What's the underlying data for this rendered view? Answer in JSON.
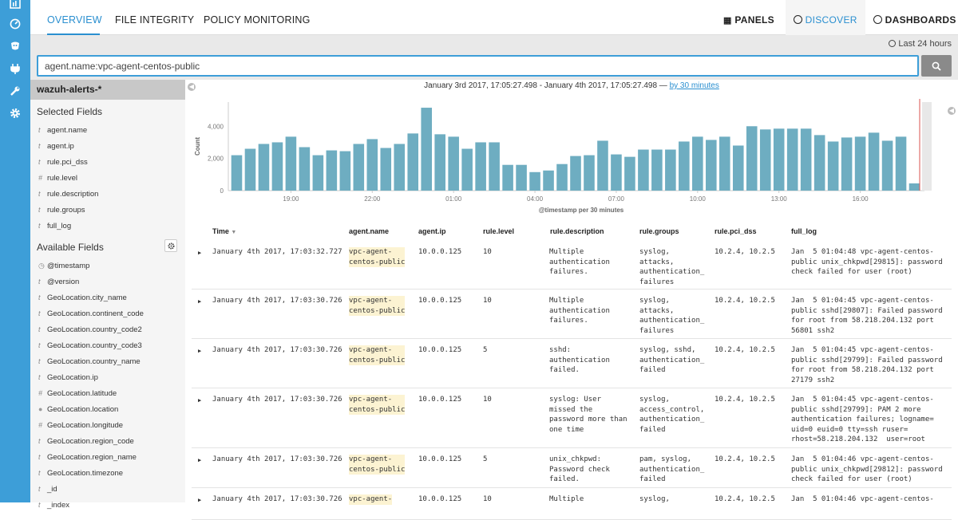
{
  "nav": {
    "tabs": [
      "OVERVIEW",
      "FILE INTEGRITY",
      "POLICY MONITORING"
    ],
    "right_tabs": [
      "PANELS",
      "DISCOVER",
      "DASHBOARDS"
    ]
  },
  "time_picker": "Last 24 hours",
  "search": {
    "query": "agent.name:vpc-agent-centos-public"
  },
  "sidebar": {
    "index_pattern": "wazuh-alerts-*",
    "selected_title": "Selected Fields",
    "selected_fields": [
      {
        "type": "t",
        "name": "agent.name"
      },
      {
        "type": "t",
        "name": "agent.ip"
      },
      {
        "type": "t",
        "name": "rule.pci_dss"
      },
      {
        "type": "#",
        "name": "rule.level"
      },
      {
        "type": "t",
        "name": "rule.description"
      },
      {
        "type": "t",
        "name": "rule.groups"
      },
      {
        "type": "t",
        "name": "full_log"
      }
    ],
    "available_title": "Available Fields",
    "available_fields": [
      {
        "type": "clock",
        "name": "@timestamp"
      },
      {
        "type": "t",
        "name": "@version"
      },
      {
        "type": "t",
        "name": "GeoLocation.city_name"
      },
      {
        "type": "t",
        "name": "GeoLocation.continent_code"
      },
      {
        "type": "t",
        "name": "GeoLocation.country_code2"
      },
      {
        "type": "t",
        "name": "GeoLocation.country_code3"
      },
      {
        "type": "t",
        "name": "GeoLocation.country_name"
      },
      {
        "type": "t",
        "name": "GeoLocation.ip"
      },
      {
        "type": "#",
        "name": "GeoLocation.latitude"
      },
      {
        "type": "globe",
        "name": "GeoLocation.location"
      },
      {
        "type": "#",
        "name": "GeoLocation.longitude"
      },
      {
        "type": "t",
        "name": "GeoLocation.region_code"
      },
      {
        "type": "t",
        "name": "GeoLocation.region_name"
      },
      {
        "type": "t",
        "name": "GeoLocation.timezone"
      },
      {
        "type": "t",
        "name": "_id"
      },
      {
        "type": "t",
        "name": "_index"
      }
    ]
  },
  "histogram": {
    "range_text": "January 3rd 2017, 17:05:27.498 - January 4th 2017, 17:05:27.498 —",
    "interval_link": "by 30 minutes",
    "xlabel": "@timestamp per 30 minutes"
  },
  "chart_data": {
    "type": "bar",
    "title": "",
    "xlabel": "@timestamp per 30 minutes",
    "ylabel": "Count",
    "ylim": [
      0,
      5500
    ],
    "yticks": [
      "0",
      "2,000",
      "4,000"
    ],
    "ytick_values": [
      0,
      2000,
      4000
    ],
    "xticks": [
      "19:00",
      "22:00",
      "01:00",
      "04:00",
      "07:00",
      "10:00",
      "13:00",
      "16:00"
    ],
    "xtick_bar_index": [
      4,
      10,
      16,
      22,
      28,
      34,
      40,
      46
    ],
    "values": [
      2200,
      2600,
      2900,
      3000,
      3350,
      2700,
      2200,
      2500,
      2450,
      2900,
      3200,
      2650,
      2900,
      3550,
      5150,
      3500,
      3350,
      2600,
      3000,
      3000,
      1600,
      1600,
      1150,
      1250,
      1650,
      2150,
      2200,
      3100,
      2250,
      2100,
      2550,
      2550,
      2550,
      3050,
      3350,
      3150,
      3350,
      2800,
      4000,
      3800,
      3850,
      3850,
      3850,
      3450,
      3050,
      3300,
      3350,
      3600,
      3100,
      3350,
      450
    ]
  },
  "table": {
    "headers": [
      "Time",
      "agent.name",
      "agent.ip",
      "rule.level",
      "rule.description",
      "rule.groups",
      "rule.pci_dss",
      "full_log"
    ],
    "rows": [
      {
        "time": "January 4th 2017, 17:03:32.727",
        "agent": "vpc-agent-\ncentos-public",
        "ip": "10.0.0.125",
        "level": "10",
        "desc": "Multiple\nauthentication\nfailures.",
        "groups": "syslog,\nattacks,\nauthentication_\nfailures",
        "pci": "10.2.4, 10.2.5",
        "log": "Jan  5 01:04:48 vpc-agent-centos-\npublic unix_chkpwd[29815]: password\ncheck failed for user (root)"
      },
      {
        "time": "January 4th 2017, 17:03:30.726",
        "agent": "vpc-agent-\ncentos-public",
        "ip": "10.0.0.125",
        "level": "10",
        "desc": "Multiple\nauthentication\nfailures.",
        "groups": "syslog,\nattacks,\nauthentication_\nfailures",
        "pci": "10.2.4, 10.2.5",
        "log": "Jan  5 01:04:45 vpc-agent-centos-\npublic sshd[29807]: Failed password\nfor root from 58.218.204.132 port\n56801 ssh2"
      },
      {
        "time": "January 4th 2017, 17:03:30.726",
        "agent": "vpc-agent-\ncentos-public",
        "ip": "10.0.0.125",
        "level": "5",
        "desc": "sshd:\nauthentication\nfailed.",
        "groups": "syslog, sshd,\nauthentication_\nfailed",
        "pci": "10.2.4, 10.2.5",
        "log": "Jan  5 01:04:45 vpc-agent-centos-\npublic sshd[29799]: Failed password\nfor root from 58.218.204.132 port\n27179 ssh2"
      },
      {
        "time": "January 4th 2017, 17:03:30.726",
        "agent": "vpc-agent-\ncentos-public",
        "ip": "10.0.0.125",
        "level": "10",
        "desc": "syslog: User\nmissed the\npassword more than\none time",
        "groups": "syslog,\naccess_control,\nauthentication_\nfailed",
        "pci": "10.2.4, 10.2.5",
        "log": "Jan  5 01:04:45 vpc-agent-centos-\npublic sshd[29799]: PAM 2 more\nauthentication failures; logname=\nuid=0 euid=0 tty=ssh ruser=\nrhost=58.218.204.132  user=root"
      },
      {
        "time": "January 4th 2017, 17:03:30.726",
        "agent": "vpc-agent-\ncentos-public",
        "ip": "10.0.0.125",
        "level": "5",
        "desc": "unix_chkpwd:\nPassword check\nfailed.",
        "groups": "pam, syslog,\nauthentication_\nfailed",
        "pci": "10.2.4, 10.2.5",
        "log": "Jan  5 01:04:46 vpc-agent-centos-\npublic unix_chkpwd[29812]: password\ncheck failed for user (root)"
      },
      {
        "time": "January 4th 2017, 17:03:30.726",
        "agent": "vpc-agent-",
        "ip": "10.0.0.125",
        "level": "10",
        "desc": "Multiple",
        "groups": "syslog,",
        "pci": "10.2.4, 10.2.5",
        "log": "Jan  5 01:04:46 vpc-agent-centos-"
      }
    ]
  }
}
